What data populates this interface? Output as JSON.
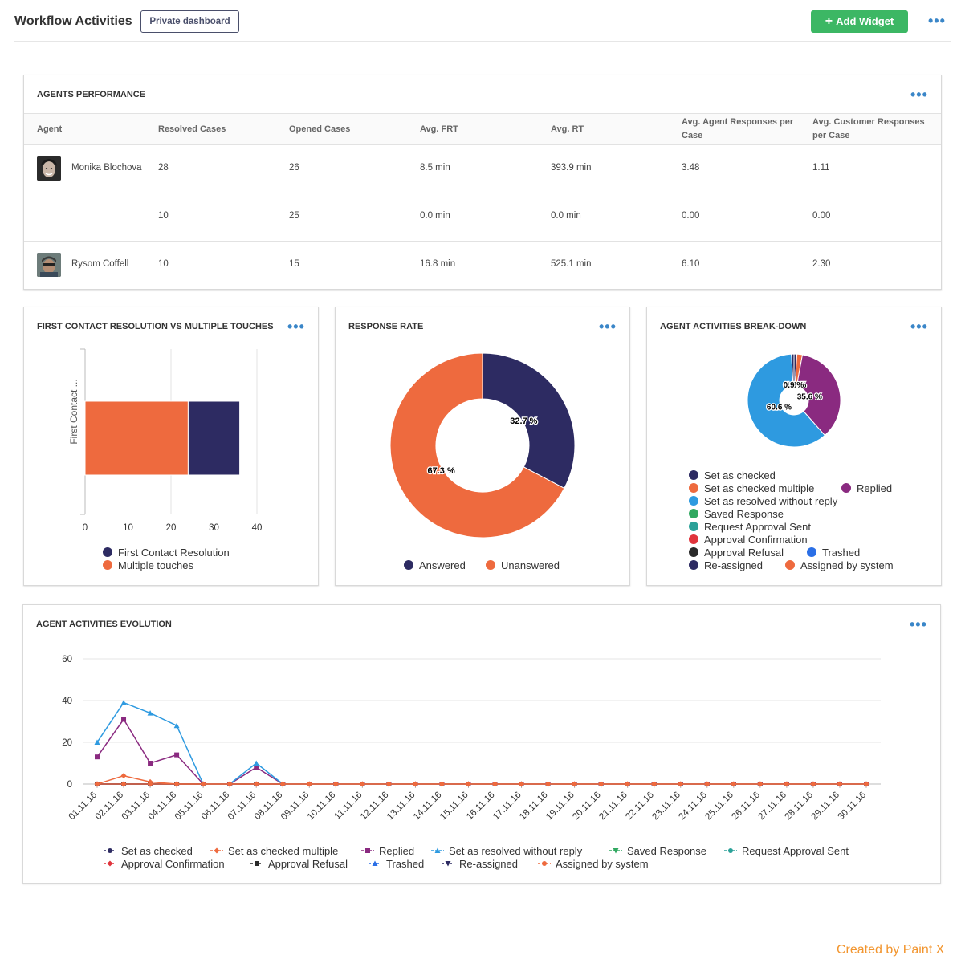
{
  "header": {
    "title": "Workflow Activities",
    "private_label": "Private dashboard",
    "add_widget_label": "Add Widget",
    "plus": "+"
  },
  "dots": "•••",
  "agents_panel": {
    "title": "AGENTS PERFORMANCE",
    "columns": [
      "Agent",
      "Resolved Cases",
      "Opened Cases",
      "Avg. FRT",
      "Avg. RT",
      "Avg. Agent Responses per Case",
      "Avg. Customer Responses per Case"
    ],
    "rows": [
      {
        "agent": "Monika Blochova",
        "resolved": "28",
        "opened": "26",
        "frt": "8.5 min",
        "rt": "393.9 min",
        "agent_resp": "3.48",
        "cust_resp": "1.11"
      },
      {
        "agent": "",
        "resolved": "10",
        "opened": "25",
        "frt": "0.0 min",
        "rt": "0.0 min",
        "agent_resp": "0.00",
        "cust_resp": "0.00"
      },
      {
        "agent": "Rysom Coffell",
        "resolved": "10",
        "opened": "15",
        "frt": "16.8 min",
        "rt": "525.1 min",
        "agent_resp": "6.10",
        "cust_resp": "2.30"
      }
    ]
  },
  "fcr_panel": {
    "title": "FIRST CONTACT RESOLUTION VS MULTIPLE TOUCHES",
    "y_label": "First Contact ...",
    "legend": [
      "First Contact Resolution",
      "Multiple touches"
    ]
  },
  "rr_panel": {
    "title": "RESPONSE RATE",
    "legend": [
      "Answered",
      "Unanswered"
    ]
  },
  "aab_panel": {
    "title": "AGENT ACTIVITIES BREAK-DOWN",
    "legend": [
      "Set as checked",
      "Set as checked multiple",
      "Replied",
      "Set as resolved without reply",
      "Saved Response",
      "Request Approval Sent",
      "Approval Confirmation",
      "Approval Refusal",
      "Trashed",
      "Re-assigned",
      "Assigned by system"
    ]
  },
  "evo_panel": {
    "title": "AGENT ACTIVITIES EVOLUTION"
  },
  "colors": {
    "navy": "#2d2b62",
    "orange": "#ee6a3e",
    "purple": "#8a2a80",
    "blue": "#2e9ae0",
    "green": "#30a860",
    "teal": "#2aa198",
    "red": "#e0343c",
    "dark": "#2a2a2a",
    "bright_blue": "#2b6fe6",
    "accent": "#3cb764",
    "link": "#3a86c8"
  },
  "watermark": "Created by Paint X",
  "chart_data": [
    {
      "type": "bar",
      "orientation": "horizontal",
      "stacked": true,
      "title": "FIRST CONTACT RESOLUTION VS MULTIPLE TOUCHES",
      "ylabel": "First Contact ...",
      "xlim": [
        0,
        40
      ],
      "xticks": [
        "0",
        "10",
        "20",
        "30",
        "40"
      ],
      "series": [
        {
          "name": "Multiple touches",
          "values": [
            24
          ],
          "color": "#ee6a3e"
        },
        {
          "name": "First Contact Resolution",
          "values": [
            12
          ],
          "color": "#2d2b62"
        }
      ],
      "legend": "bottom"
    },
    {
      "type": "pie",
      "donut": true,
      "title": "RESPONSE RATE",
      "slices": [
        {
          "name": "Answered",
          "value": 32.7,
          "label": "32.7 %",
          "color": "#2d2b62"
        },
        {
          "name": "Unanswered",
          "value": 67.3,
          "label": "67.3 %",
          "color": "#ee6a3e"
        }
      ],
      "legend": "bottom"
    },
    {
      "type": "pie",
      "donut": true,
      "title": "AGENT ACTIVITIES BREAK-DOWN",
      "slices": [
        {
          "name": "Set as checked",
          "value": 1.0,
          "color": "#2d2b62"
        },
        {
          "name": "Set as checked multiple",
          "value": 1.9,
          "label": "1.9 %",
          "color": "#ee6a3e"
        },
        {
          "name": "Replied",
          "value": 35.6,
          "label": "35.6 %",
          "color": "#8a2a80"
        },
        {
          "name": "Set as resolved without reply",
          "value": 60.6,
          "label": "60.6 %",
          "color": "#2e9ae0"
        },
        {
          "name": "Saved Response",
          "value": 0,
          "color": "#30a860"
        },
        {
          "name": "Request Approval Sent",
          "value": 0,
          "color": "#2aa198"
        },
        {
          "name": "Approval Confirmation",
          "value": 0,
          "color": "#e0343c"
        },
        {
          "name": "Approval Refusal",
          "value": 0,
          "color": "#2a2a2a"
        },
        {
          "name": "Trashed",
          "value": 0,
          "color": "#2b6fe6"
        },
        {
          "name": "Re-assigned",
          "value": 0.9,
          "label": "0.9 %",
          "color": "#2d2b62"
        },
        {
          "name": "Assigned by system",
          "value": 0,
          "color": "#ee6a3e"
        }
      ],
      "legend": "bottom"
    },
    {
      "type": "line",
      "title": "AGENT ACTIVITIES EVOLUTION",
      "ylim": [
        0,
        60
      ],
      "yticks": [
        "0",
        "20",
        "40",
        "60"
      ],
      "x": [
        "01.11.16",
        "02.11.16",
        "03.11.16",
        "04.11.16",
        "05.11.16",
        "06.11.16",
        "07.11.16",
        "08.11.16",
        "09.11.16",
        "10.11.16",
        "11.11.16",
        "12.11.16",
        "13.11.16",
        "14.11.16",
        "15.11.16",
        "16.11.16",
        "17.11.16",
        "18.11.16",
        "19.11.16",
        "20.11.16",
        "21.11.16",
        "22.11.16",
        "23.11.16",
        "24.11.16",
        "25.11.16",
        "26.11.16",
        "27.11.16",
        "28.11.16",
        "29.11.16",
        "30.11.16"
      ],
      "series": [
        {
          "name": "Set as checked",
          "color": "#2d2b62",
          "marker": "circle",
          "values": [
            0,
            0,
            0,
            0,
            0,
            0,
            0,
            0,
            0,
            0,
            0,
            0,
            0,
            0,
            0,
            0,
            0,
            0,
            0,
            0,
            0,
            0,
            0,
            0,
            0,
            0,
            0,
            0,
            0,
            0
          ]
        },
        {
          "name": "Set as checked multiple",
          "color": "#ee6a3e",
          "marker": "diamond",
          "values": [
            0,
            4,
            1,
            0,
            0,
            0,
            0,
            0,
            0,
            0,
            0,
            0,
            0,
            0,
            0,
            0,
            0,
            0,
            0,
            0,
            0,
            0,
            0,
            0,
            0,
            0,
            0,
            0,
            0,
            0
          ]
        },
        {
          "name": "Replied",
          "color": "#8a2a80",
          "marker": "square",
          "values": [
            13,
            31,
            10,
            14,
            0,
            0,
            8,
            0,
            0,
            0,
            0,
            0,
            0,
            0,
            0,
            0,
            0,
            0,
            0,
            0,
            0,
            0,
            0,
            0,
            0,
            0,
            0,
            0,
            0,
            0
          ]
        },
        {
          "name": "Set as resolved without reply",
          "color": "#2e9ae0",
          "marker": "triangle",
          "values": [
            20,
            39,
            34,
            28,
            0,
            0,
            10,
            0,
            0,
            0,
            0,
            0,
            0,
            0,
            0,
            0,
            0,
            0,
            0,
            0,
            0,
            0,
            0,
            0,
            0,
            0,
            0,
            0,
            0,
            0
          ]
        },
        {
          "name": "Saved Response",
          "color": "#30a860",
          "marker": "triangle-down",
          "values": [
            0,
            0,
            0,
            0,
            0,
            0,
            0,
            0,
            0,
            0,
            0,
            0,
            0,
            0,
            0,
            0,
            0,
            0,
            0,
            0,
            0,
            0,
            0,
            0,
            0,
            0,
            0,
            0,
            0,
            0
          ]
        },
        {
          "name": "Request Approval Sent",
          "color": "#2aa198",
          "marker": "circle",
          "values": [
            0,
            0,
            0,
            0,
            0,
            0,
            0,
            0,
            0,
            0,
            0,
            0,
            0,
            0,
            0,
            0,
            0,
            0,
            0,
            0,
            0,
            0,
            0,
            0,
            0,
            0,
            0,
            0,
            0,
            0
          ]
        },
        {
          "name": "Approval Confirmation",
          "color": "#e0343c",
          "marker": "diamond",
          "values": [
            0,
            0,
            0,
            0,
            0,
            0,
            0,
            0,
            0,
            0,
            0,
            0,
            0,
            0,
            0,
            0,
            0,
            0,
            0,
            0,
            0,
            0,
            0,
            0,
            0,
            0,
            0,
            0,
            0,
            0
          ]
        },
        {
          "name": "Approval Refusal",
          "color": "#2a2a2a",
          "marker": "square",
          "values": [
            0,
            0,
            0,
            0,
            0,
            0,
            0,
            0,
            0,
            0,
            0,
            0,
            0,
            0,
            0,
            0,
            0,
            0,
            0,
            0,
            0,
            0,
            0,
            0,
            0,
            0,
            0,
            0,
            0,
            0
          ]
        },
        {
          "name": "Trashed",
          "color": "#2b6fe6",
          "marker": "triangle",
          "values": [
            0,
            0,
            0,
            0,
            0,
            0,
            0,
            0,
            0,
            0,
            0,
            0,
            0,
            0,
            0,
            0,
            0,
            0,
            0,
            0,
            0,
            0,
            0,
            0,
            0,
            0,
            0,
            0,
            0,
            0
          ]
        },
        {
          "name": "Re-assigned",
          "color": "#2d2b62",
          "marker": "triangle-down",
          "values": [
            0,
            0,
            0,
            0,
            0,
            0,
            0,
            0,
            0,
            0,
            0,
            0,
            0,
            0,
            0,
            0,
            0,
            0,
            0,
            0,
            0,
            0,
            0,
            0,
            0,
            0,
            0,
            0,
            0,
            0
          ]
        },
        {
          "name": "Assigned by system",
          "color": "#ee6a3e",
          "marker": "circle",
          "values": [
            0,
            0,
            0,
            0,
            0,
            0,
            0,
            0,
            0,
            0,
            0,
            0,
            0,
            0,
            0,
            0,
            0,
            0,
            0,
            0,
            0,
            0,
            0,
            0,
            0,
            0,
            0,
            0,
            0,
            0
          ]
        }
      ],
      "legend": "bottom"
    }
  ]
}
